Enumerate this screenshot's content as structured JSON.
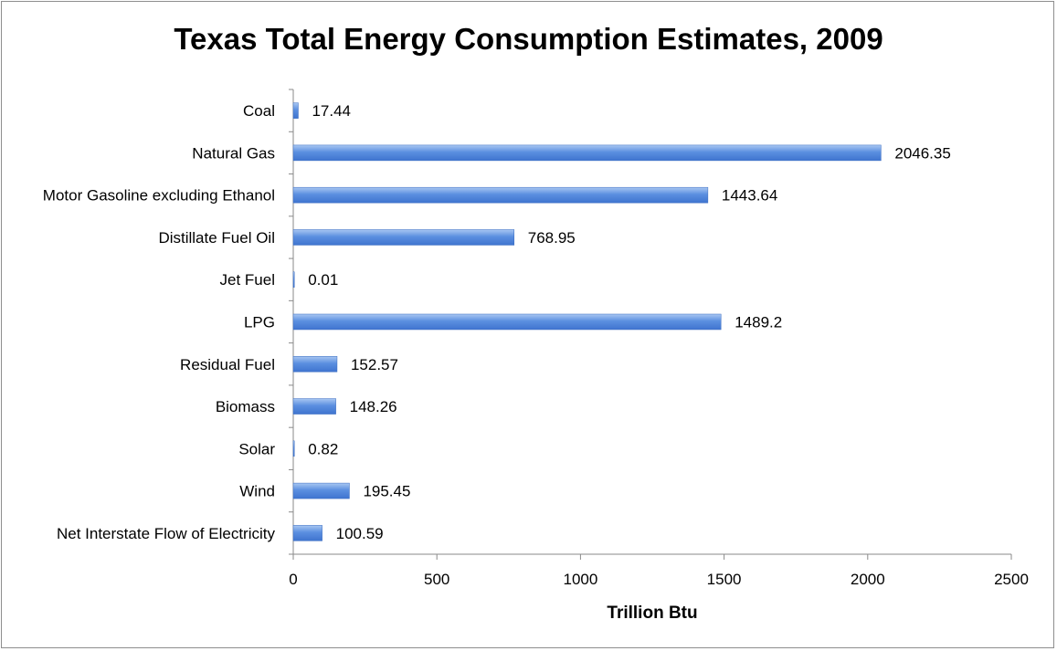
{
  "chart_data": {
    "type": "bar",
    "orientation": "horizontal",
    "title": "Texas Total Energy Consumption Estimates, 2009",
    "xlabel": "Trillion Btu",
    "ylabel": "",
    "xlim": [
      0,
      2500
    ],
    "xticks": [
      0,
      500,
      1000,
      1500,
      2000,
      2500
    ],
    "grid": false,
    "legend": "none",
    "bar_color": "#4a7fd6",
    "categories": [
      "Coal",
      "Natural Gas",
      "Motor Gasoline excluding Ethanol",
      "Distillate Fuel Oil",
      "Jet Fuel",
      "LPG",
      "Residual Fuel",
      "Biomass",
      "Solar",
      "Wind",
      "Net Interstate Flow of Electricity"
    ],
    "values": [
      17.44,
      2046.35,
      1443.64,
      768.95,
      0.01,
      1489.2,
      152.57,
      148.26,
      0.82,
      195.45,
      100.59
    ],
    "value_labels": [
      "17.44",
      "2046.35",
      "1443.64",
      "768.95",
      "0.01",
      "1489.2",
      "152.57",
      "148.26",
      "0.82",
      "195.45",
      "100.59"
    ]
  }
}
